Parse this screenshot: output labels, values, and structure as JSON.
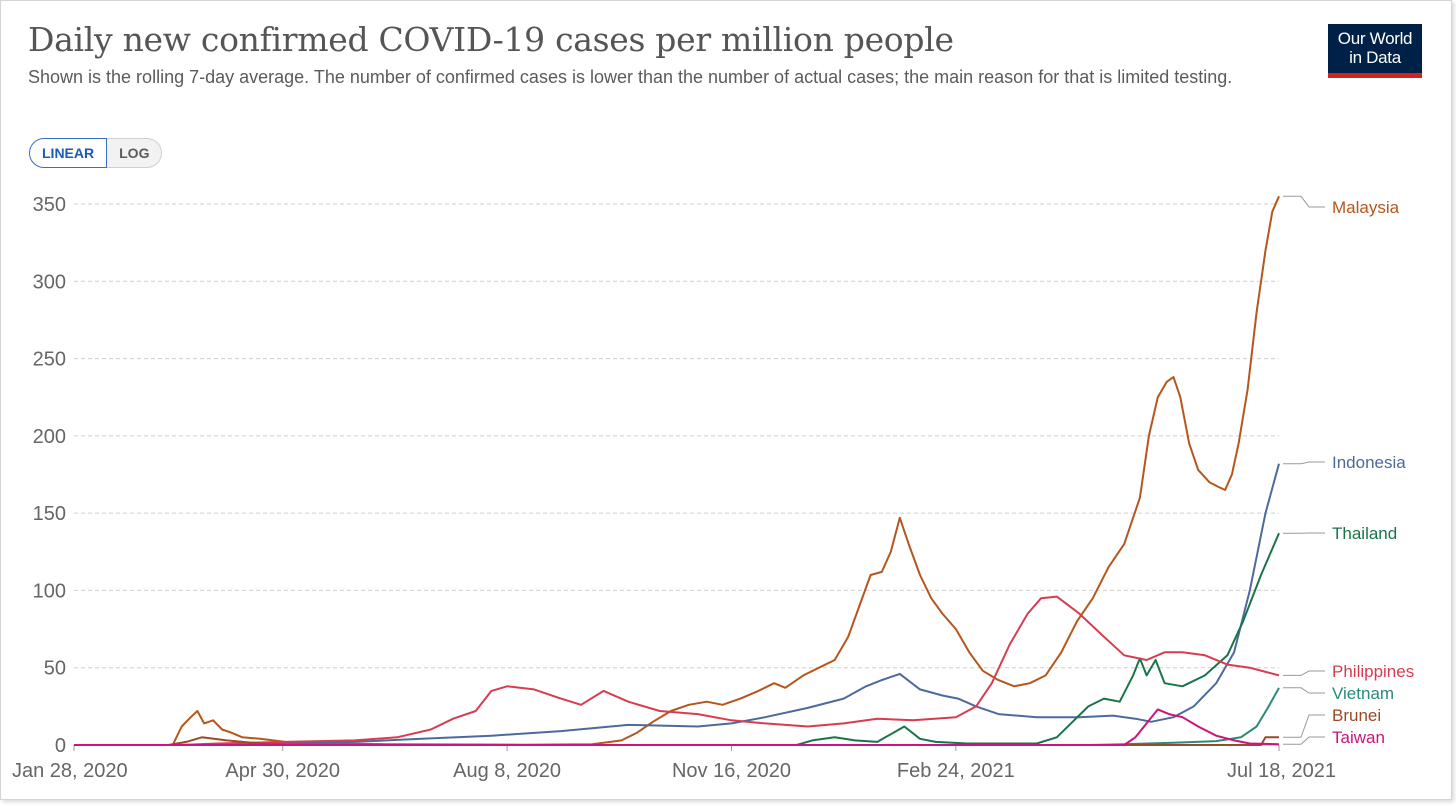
{
  "header": {
    "title": "Daily new confirmed COVID-19 cases per million people",
    "subtitle": "Shown is the rolling 7-day average. The number of confirmed cases is lower than the number of actual cases; the main reason for that is limited testing."
  },
  "logo": {
    "line1": "Our World",
    "line2": "in Data"
  },
  "toggle": {
    "linear_label": "LINEAR",
    "log_label": "LOG",
    "selected": "LINEAR"
  },
  "chart_data": {
    "type": "line",
    "title": "Daily new confirmed COVID-19 cases per million people",
    "xlabel": "",
    "ylabel": "",
    "x_ticks": [
      "Jan 28, 2020",
      "Apr 30, 2020",
      "Aug 8, 2020",
      "Nov 16, 2020",
      "Feb 24, 2021",
      "Jul 18, 2021"
    ],
    "y_ticks": [
      0,
      50,
      100,
      150,
      200,
      250,
      300,
      350
    ],
    "ylim": [
      0,
      350
    ],
    "xlim": [
      "2020-01-28",
      "2021-07-18"
    ],
    "grid": "horizontal-dashed",
    "legend": "right-end-labels",
    "series": [
      {
        "name": "Malaysia",
        "color": "#b5561c",
        "points": [
          [
            "2020-01-28",
            0
          ],
          [
            "2020-03-12",
            0
          ],
          [
            "2020-03-16",
            12
          ],
          [
            "2020-03-20",
            18
          ],
          [
            "2020-03-23",
            22
          ],
          [
            "2020-03-26",
            14
          ],
          [
            "2020-03-30",
            16
          ],
          [
            "2020-04-03",
            10
          ],
          [
            "2020-04-07",
            8
          ],
          [
            "2020-04-12",
            5
          ],
          [
            "2020-04-20",
            4
          ],
          [
            "2020-05-01",
            2
          ],
          [
            "2020-05-15",
            1
          ],
          [
            "2020-06-15",
            0.5
          ],
          [
            "2020-08-15",
            0.2
          ],
          [
            "2020-09-15",
            0.5
          ],
          [
            "2020-09-28",
            3
          ],
          [
            "2020-10-05",
            8
          ],
          [
            "2020-10-12",
            15
          ],
          [
            "2020-10-20",
            22
          ],
          [
            "2020-10-28",
            26
          ],
          [
            "2020-11-05",
            28
          ],
          [
            "2020-11-12",
            26
          ],
          [
            "2020-11-20",
            30
          ],
          [
            "2020-11-28",
            35
          ],
          [
            "2020-12-05",
            40
          ],
          [
            "2020-12-10",
            37
          ],
          [
            "2020-12-18",
            45
          ],
          [
            "2020-12-25",
            50
          ],
          [
            "2021-01-01",
            55
          ],
          [
            "2021-01-07",
            70
          ],
          [
            "2021-01-12",
            90
          ],
          [
            "2021-01-17",
            110
          ],
          [
            "2021-01-22",
            112
          ],
          [
            "2021-01-26",
            125
          ],
          [
            "2021-01-30",
            147
          ],
          [
            "2021-02-03",
            130
          ],
          [
            "2021-02-08",
            110
          ],
          [
            "2021-02-13",
            95
          ],
          [
            "2021-02-18",
            85
          ],
          [
            "2021-02-24",
            75
          ],
          [
            "2021-03-02",
            60
          ],
          [
            "2021-03-08",
            48
          ],
          [
            "2021-03-15",
            42
          ],
          [
            "2021-03-22",
            38
          ],
          [
            "2021-03-29",
            40
          ],
          [
            "2021-04-05",
            45
          ],
          [
            "2021-04-12",
            60
          ],
          [
            "2021-04-19",
            80
          ],
          [
            "2021-04-26",
            95
          ],
          [
            "2021-05-03",
            115
          ],
          [
            "2021-05-10",
            130
          ],
          [
            "2021-05-17",
            160
          ],
          [
            "2021-05-21",
            200
          ],
          [
            "2021-05-25",
            225
          ],
          [
            "2021-05-29",
            235
          ],
          [
            "2021-06-01",
            238
          ],
          [
            "2021-06-04",
            225
          ],
          [
            "2021-06-08",
            195
          ],
          [
            "2021-06-12",
            178
          ],
          [
            "2021-06-17",
            170
          ],
          [
            "2021-06-21",
            167
          ],
          [
            "2021-06-24",
            165
          ],
          [
            "2021-06-27",
            175
          ],
          [
            "2021-06-30",
            195
          ],
          [
            "2021-07-04",
            230
          ],
          [
            "2021-07-08",
            280
          ],
          [
            "2021-07-12",
            320
          ],
          [
            "2021-07-15",
            345
          ],
          [
            "2021-07-18",
            355
          ]
        ]
      },
      {
        "name": "Indonesia",
        "color": "#4c6a9c",
        "points": [
          [
            "2020-01-28",
            0
          ],
          [
            "2020-03-15",
            0
          ],
          [
            "2020-04-01",
            0.5
          ],
          [
            "2020-05-01",
            1
          ],
          [
            "2020-06-01",
            2
          ],
          [
            "2020-07-01",
            4
          ],
          [
            "2020-08-01",
            6
          ],
          [
            "2020-09-01",
            9
          ],
          [
            "2020-10-01",
            13
          ],
          [
            "2020-11-01",
            12
          ],
          [
            "2020-11-16",
            14
          ],
          [
            "2020-12-01",
            18
          ],
          [
            "2020-12-20",
            24
          ],
          [
            "2021-01-05",
            30
          ],
          [
            "2021-01-15",
            38
          ],
          [
            "2021-01-22",
            42
          ],
          [
            "2021-01-30",
            46
          ],
          [
            "2021-02-08",
            36
          ],
          [
            "2021-02-18",
            32
          ],
          [
            "2021-02-25",
            30
          ],
          [
            "2021-03-05",
            25
          ],
          [
            "2021-03-15",
            20
          ],
          [
            "2021-04-01",
            18
          ],
          [
            "2021-04-20",
            18
          ],
          [
            "2021-05-05",
            19
          ],
          [
            "2021-05-15",
            17
          ],
          [
            "2021-05-22",
            15
          ],
          [
            "2021-06-01",
            18
          ],
          [
            "2021-06-10",
            25
          ],
          [
            "2021-06-20",
            40
          ],
          [
            "2021-06-28",
            60
          ],
          [
            "2021-07-05",
            100
          ],
          [
            "2021-07-12",
            150
          ],
          [
            "2021-07-18",
            182
          ]
        ]
      },
      {
        "name": "Thailand",
        "color": "#18754a",
        "points": [
          [
            "2020-01-28",
            0
          ],
          [
            "2020-12-15",
            0
          ],
          [
            "2020-12-22",
            3
          ],
          [
            "2021-01-01",
            5
          ],
          [
            "2021-01-10",
            3
          ],
          [
            "2021-01-20",
            2
          ],
          [
            "2021-02-01",
            12
          ],
          [
            "2021-02-08",
            4
          ],
          [
            "2021-02-15",
            2
          ],
          [
            "2021-03-01",
            1
          ],
          [
            "2021-04-01",
            1
          ],
          [
            "2021-04-10",
            5
          ],
          [
            "2021-04-17",
            15
          ],
          [
            "2021-04-24",
            25
          ],
          [
            "2021-05-01",
            30
          ],
          [
            "2021-05-08",
            28
          ],
          [
            "2021-05-14",
            45
          ],
          [
            "2021-05-17",
            56
          ],
          [
            "2021-05-20",
            45
          ],
          [
            "2021-05-24",
            55
          ],
          [
            "2021-05-28",
            40
          ],
          [
            "2021-06-05",
            38
          ],
          [
            "2021-06-15",
            45
          ],
          [
            "2021-06-25",
            58
          ],
          [
            "2021-07-02",
            80
          ],
          [
            "2021-07-10",
            110
          ],
          [
            "2021-07-18",
            137
          ]
        ]
      },
      {
        "name": "Philippines",
        "color": "#d73c50",
        "points": [
          [
            "2020-01-28",
            0
          ],
          [
            "2020-03-15",
            0
          ],
          [
            "2020-04-01",
            1
          ],
          [
            "2020-05-01",
            2
          ],
          [
            "2020-06-01",
            3
          ],
          [
            "2020-06-20",
            5
          ],
          [
            "2020-07-05",
            10
          ],
          [
            "2020-07-15",
            17
          ],
          [
            "2020-07-25",
            22
          ],
          [
            "2020-08-01",
            35
          ],
          [
            "2020-08-08",
            38
          ],
          [
            "2020-08-20",
            36
          ],
          [
            "2020-09-01",
            30
          ],
          [
            "2020-09-10",
            26
          ],
          [
            "2020-09-20",
            35
          ],
          [
            "2020-10-01",
            28
          ],
          [
            "2020-10-15",
            22
          ],
          [
            "2020-11-01",
            20
          ],
          [
            "2020-11-16",
            16
          ],
          [
            "2020-12-01",
            14
          ],
          [
            "2020-12-20",
            12
          ],
          [
            "2021-01-05",
            14
          ],
          [
            "2021-01-20",
            17
          ],
          [
            "2021-02-05",
            16
          ],
          [
            "2021-02-24",
            18
          ],
          [
            "2021-03-05",
            25
          ],
          [
            "2021-03-12",
            40
          ],
          [
            "2021-03-20",
            65
          ],
          [
            "2021-03-28",
            85
          ],
          [
            "2021-04-03",
            95
          ],
          [
            "2021-04-10",
            96
          ],
          [
            "2021-04-20",
            85
          ],
          [
            "2021-05-01",
            70
          ],
          [
            "2021-05-10",
            58
          ],
          [
            "2021-05-20",
            55
          ],
          [
            "2021-05-28",
            60
          ],
          [
            "2021-06-05",
            60
          ],
          [
            "2021-06-15",
            58
          ],
          [
            "2021-06-25",
            52
          ],
          [
            "2021-07-05",
            50
          ],
          [
            "2021-07-18",
            45
          ]
        ]
      },
      {
        "name": "Vietnam",
        "color": "#2a8a7a",
        "points": [
          [
            "2020-01-28",
            0
          ],
          [
            "2021-04-25",
            0
          ],
          [
            "2021-05-10",
            0.5
          ],
          [
            "2021-06-01",
            1.5
          ],
          [
            "2021-06-20",
            2.5
          ],
          [
            "2021-07-01",
            5
          ],
          [
            "2021-07-08",
            12
          ],
          [
            "2021-07-13",
            24
          ],
          [
            "2021-07-18",
            37
          ]
        ]
      },
      {
        "name": "Brunei",
        "color": "#9a4a28",
        "points": [
          [
            "2020-01-28",
            0
          ],
          [
            "2020-03-10",
            0
          ],
          [
            "2020-03-18",
            2
          ],
          [
            "2020-03-25",
            5
          ],
          [
            "2020-04-05",
            3
          ],
          [
            "2020-04-20",
            1
          ],
          [
            "2020-05-01",
            0
          ],
          [
            "2021-07-10",
            0
          ],
          [
            "2021-07-12",
            5
          ],
          [
            "2021-07-18",
            5
          ]
        ]
      },
      {
        "name": "Taiwan",
        "color": "#c9157d",
        "points": [
          [
            "2020-01-28",
            0
          ],
          [
            "2021-05-10",
            0
          ],
          [
            "2021-05-15",
            5
          ],
          [
            "2021-05-20",
            14
          ],
          [
            "2021-05-25",
            23
          ],
          [
            "2021-05-30",
            20
          ],
          [
            "2021-06-05",
            18
          ],
          [
            "2021-06-12",
            12
          ],
          [
            "2021-06-20",
            6
          ],
          [
            "2021-06-28",
            3
          ],
          [
            "2021-07-05",
            1
          ],
          [
            "2021-07-18",
            0.5
          ]
        ]
      }
    ]
  }
}
